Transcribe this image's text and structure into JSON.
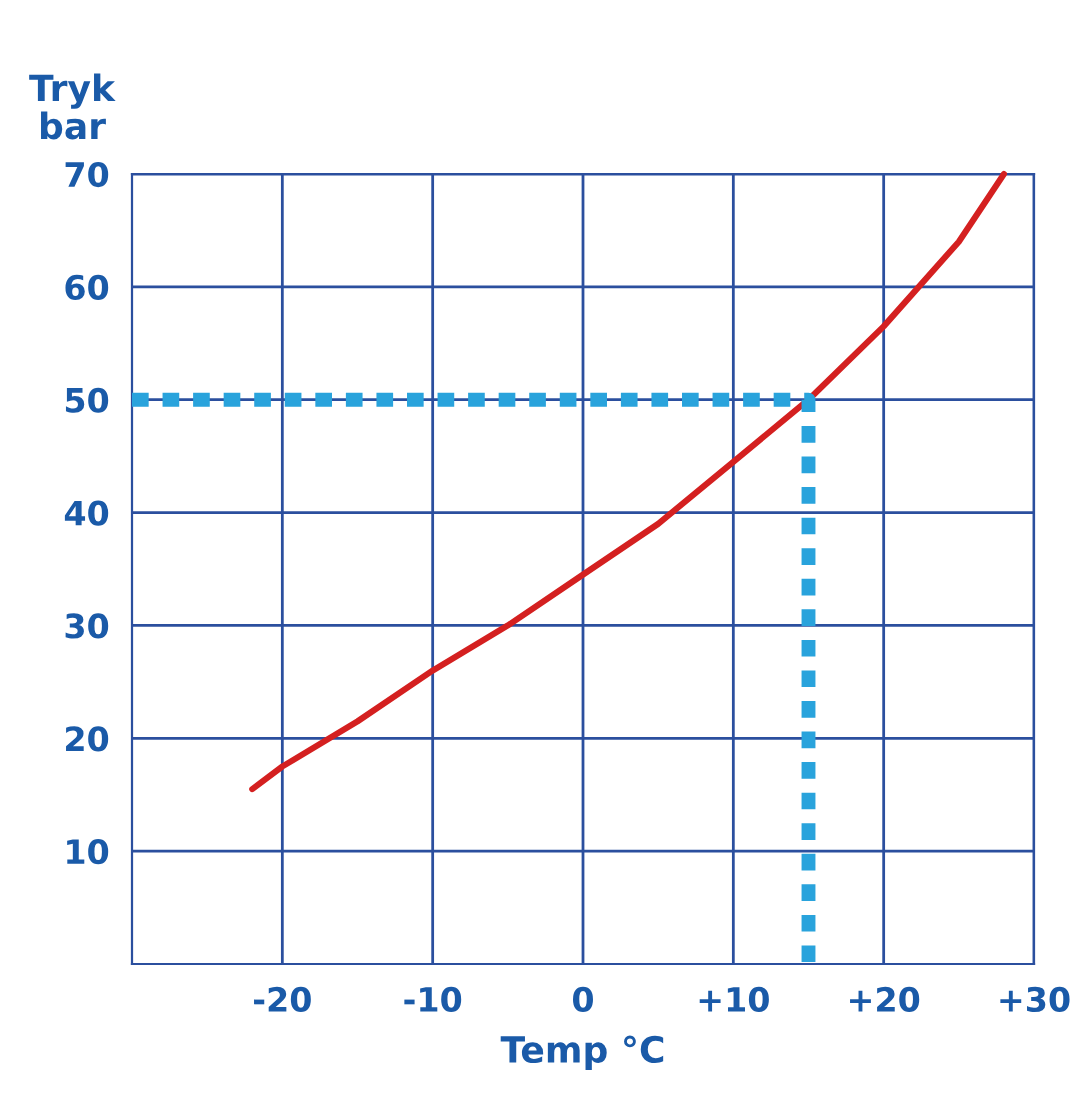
{
  "chart_data": {
    "type": "line",
    "xlabel": "Temp °C",
    "ylabel": "Tryk\nbar",
    "xlim": [
      -30,
      30
    ],
    "ylim": [
      0,
      70
    ],
    "xticks": [
      {
        "value": -20,
        "label": "-20"
      },
      {
        "value": -10,
        "label": "-10"
      },
      {
        "value": 0,
        "label": "0"
      },
      {
        "value": 10,
        "label": "+10"
      },
      {
        "value": 20,
        "label": "+20"
      },
      {
        "value": 30,
        "label": "+30"
      }
    ],
    "yticks": [
      10,
      20,
      30,
      40,
      50,
      60,
      70
    ],
    "grid": true,
    "marker": "none",
    "series": [
      {
        "color": "#d42020",
        "x": [
          -22,
          -20,
          -15,
          -10,
          -5,
          0,
          5,
          10,
          15,
          20,
          25,
          28
        ],
        "values": [
          15.5,
          17.5,
          21.5,
          26,
          30,
          34.5,
          39,
          44.5,
          50,
          56.5,
          64,
          70
        ]
      },
      {
        "color": "#29a3dc",
        "line_style": "dotted",
        "x": [
          -30,
          15,
          15
        ],
        "values": [
          50,
          50,
          0
        ]
      }
    ]
  }
}
